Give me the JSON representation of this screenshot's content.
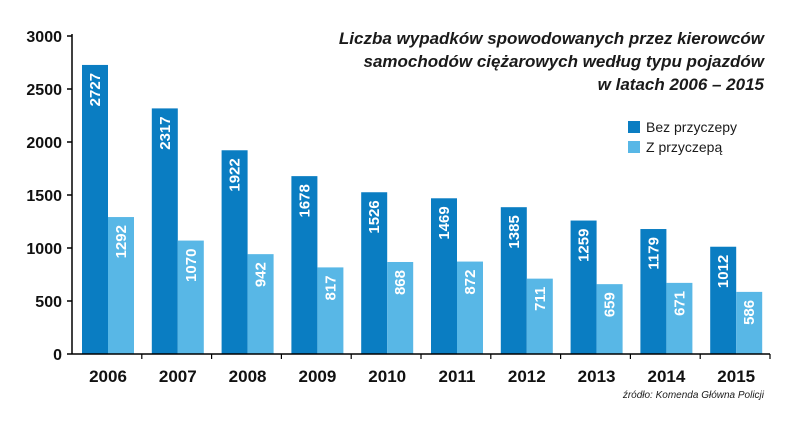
{
  "chart_data": {
    "type": "bar",
    "title_lines": [
      "Liczba wypadków spowodowanych przez kierowców",
      "samochodów ciężarowych według typu pojazdów",
      "w latach 2006 – 2015"
    ],
    "xlabel": "",
    "ylabel": "",
    "ylim": [
      0,
      3000
    ],
    "yticks": [
      0,
      500,
      1000,
      1500,
      2000,
      2500,
      3000
    ],
    "grid": false,
    "legend_position": "right",
    "categories": [
      "2006",
      "2007",
      "2008",
      "2009",
      "2010",
      "2011",
      "2012",
      "2013",
      "2014",
      "2015"
    ],
    "series": [
      {
        "name": "Bez przyczepy",
        "color": "#0a7dc2",
        "values": [
          2727,
          2317,
          1922,
          1678,
          1526,
          1469,
          1385,
          1259,
          1179,
          1012
        ]
      },
      {
        "name": "Z przyczepą",
        "color": "#58b7e6",
        "values": [
          1292,
          1070,
          942,
          817,
          868,
          872,
          711,
          659,
          671,
          586
        ]
      }
    ],
    "source": "źródło: Komenda Główna Policji"
  }
}
